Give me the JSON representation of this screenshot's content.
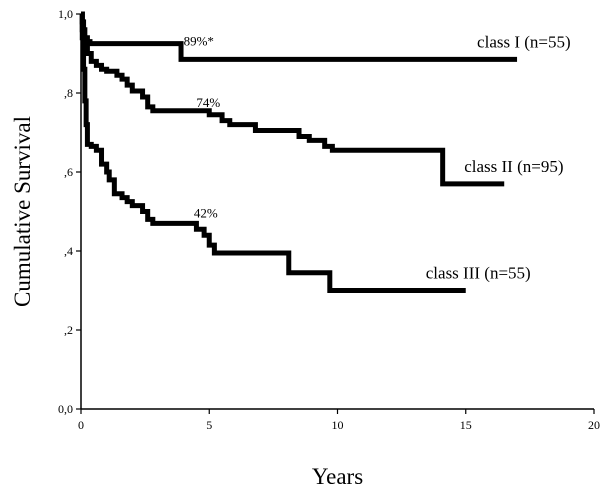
{
  "chart_data": {
    "type": "line",
    "step": true,
    "xlabel": "Years",
    "ylabel": "Cumulative Survival",
    "xlim": [
      0,
      20
    ],
    "ylim": [
      0,
      1
    ],
    "x_ticks": [
      0,
      5,
      10,
      15,
      20
    ],
    "x_tick_labels": [
      "0",
      "5",
      "10",
      "15",
      "20"
    ],
    "y_ticks": [
      0,
      0.2,
      0.4,
      0.6,
      0.8,
      1.0
    ],
    "y_tick_labels": [
      "0,0",
      ",2",
      ",4",
      ",6",
      ",8",
      "1,0"
    ],
    "grid": false,
    "legend": "none",
    "series": [
      {
        "name": "class I (n=55)",
        "points": [
          [
            0,
            1.0
          ],
          [
            0.05,
            0.98
          ],
          [
            0.1,
            0.96
          ],
          [
            0.15,
            0.94
          ],
          [
            0.25,
            0.93
          ],
          [
            0.35,
            0.925
          ],
          [
            3.9,
            0.925
          ],
          [
            3.9,
            0.885
          ],
          [
            17.0,
            0.885
          ]
        ]
      },
      {
        "name": "class II (n=95)",
        "points": [
          [
            0,
            1.0
          ],
          [
            0.05,
            0.96
          ],
          [
            0.1,
            0.94
          ],
          [
            0.15,
            0.92
          ],
          [
            0.25,
            0.9
          ],
          [
            0.4,
            0.88
          ],
          [
            0.6,
            0.87
          ],
          [
            0.8,
            0.86
          ],
          [
            1.0,
            0.855
          ],
          [
            1.4,
            0.845
          ],
          [
            1.6,
            0.835
          ],
          [
            1.8,
            0.82
          ],
          [
            2.0,
            0.805
          ],
          [
            2.4,
            0.79
          ],
          [
            2.6,
            0.765
          ],
          [
            2.8,
            0.755
          ],
          [
            4.8,
            0.755
          ],
          [
            5.0,
            0.745
          ],
          [
            5.5,
            0.73
          ],
          [
            5.8,
            0.72
          ],
          [
            6.5,
            0.72
          ],
          [
            6.8,
            0.705
          ],
          [
            8.2,
            0.705
          ],
          [
            8.5,
            0.69
          ],
          [
            8.9,
            0.68
          ],
          [
            9.5,
            0.665
          ],
          [
            9.8,
            0.655
          ],
          [
            14.0,
            0.655
          ],
          [
            14.1,
            0.57
          ],
          [
            16.5,
            0.57
          ]
        ]
      },
      {
        "name": "class III (n=55)",
        "points": [
          [
            0,
            1.0
          ],
          [
            0.05,
            0.94
          ],
          [
            0.1,
            0.86
          ],
          [
            0.15,
            0.78
          ],
          [
            0.2,
            0.72
          ],
          [
            0.25,
            0.67
          ],
          [
            0.4,
            0.665
          ],
          [
            0.6,
            0.655
          ],
          [
            0.8,
            0.62
          ],
          [
            1.0,
            0.6
          ],
          [
            1.1,
            0.58
          ],
          [
            1.3,
            0.545
          ],
          [
            1.6,
            0.535
          ],
          [
            1.8,
            0.525
          ],
          [
            2.0,
            0.515
          ],
          [
            2.4,
            0.5
          ],
          [
            2.6,
            0.48
          ],
          [
            2.8,
            0.47
          ],
          [
            4.3,
            0.47
          ],
          [
            4.5,
            0.455
          ],
          [
            4.8,
            0.44
          ],
          [
            5.0,
            0.415
          ],
          [
            5.2,
            0.395
          ],
          [
            8.0,
            0.395
          ],
          [
            8.1,
            0.345
          ],
          [
            9.6,
            0.345
          ],
          [
            9.7,
            0.3
          ],
          [
            15.0,
            0.3
          ]
        ]
      }
    ],
    "annotations": [
      {
        "text": "89%*",
        "x": 4.0,
        "y": 0.92
      },
      {
        "text": "74%",
        "x": 4.5,
        "y": 0.765
      },
      {
        "text": "42%",
        "x": 4.4,
        "y": 0.485
      }
    ]
  }
}
